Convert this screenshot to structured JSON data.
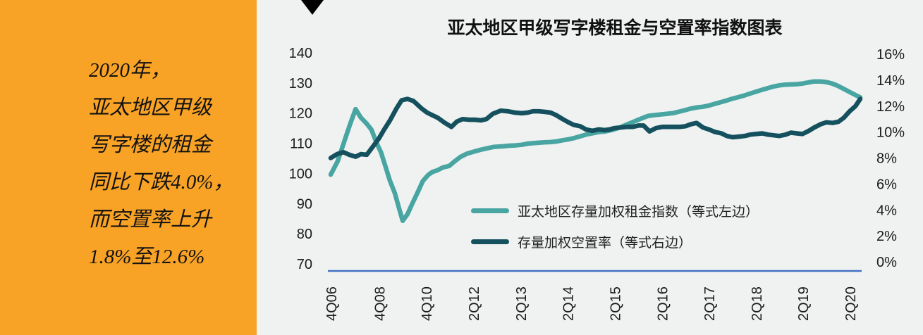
{
  "sidebar": {
    "background_color": "#F9A326",
    "lines": [
      "2020年，",
      "亚太地区甲级",
      "写字楼的租金",
      "同比下跌4.0%，",
      "而空置率上升",
      "1.8%至12.6%"
    ]
  },
  "chart": {
    "title": "亚太地区甲级写字楼租金与空置率指数图表",
    "legend": [
      {
        "label": "亚太地区存量加权租金指数（等式左边）",
        "color": "#48A5A2"
      },
      {
        "label": "存量加权空置率（等式右边）",
        "color": "#15505E"
      }
    ]
  },
  "chart_data": {
    "type": "line",
    "title": "亚太地区甲级写字楼租金与空置率指数图表",
    "grid": false,
    "legend_position": "inside-center",
    "axis_line_color": "#4472C4",
    "x_tick_labels": [
      "4Q06",
      "4Q08",
      "4Q10",
      "2Q12",
      "2Q13",
      "2Q14",
      "2Q15",
      "2Q16",
      "2Q17",
      "2Q18",
      "2Q19",
      "2Q20"
    ],
    "x_tick_pos": [
      0.0,
      0.091,
      0.18,
      0.269,
      0.358,
      0.447,
      0.536,
      0.625,
      0.714,
      0.803,
      0.891,
      0.98
    ],
    "left_axis": {
      "ticks": [
        "140",
        "130",
        "120",
        "110",
        "100",
        "90",
        "80",
        "70"
      ],
      "range": [
        70,
        140
      ]
    },
    "right_axis": {
      "ticks": [
        "16%",
        "14%",
        "12%",
        "10%",
        "8%",
        "6%",
        "4%",
        "2%",
        "0%"
      ],
      "range": [
        0,
        16
      ]
    },
    "series": [
      {
        "name": "亚太地区存量加权租金指数（等式左边）",
        "axis": "left",
        "color": "#48A5A2",
        "points": [
          [
            0.0,
            99.6
          ],
          [
            0.013,
            104.0
          ],
          [
            0.025,
            110.3
          ],
          [
            0.036,
            116.0
          ],
          [
            0.047,
            121.3
          ],
          [
            0.057,
            118.5
          ],
          [
            0.068,
            116.5
          ],
          [
            0.077,
            114.5
          ],
          [
            0.087,
            110.0
          ],
          [
            0.095,
            107.0
          ],
          [
            0.103,
            102.5
          ],
          [
            0.112,
            97.5
          ],
          [
            0.121,
            93.5
          ],
          [
            0.129,
            88.5
          ],
          [
            0.136,
            84.3
          ],
          [
            0.145,
            86.5
          ],
          [
            0.154,
            90.0
          ],
          [
            0.165,
            94.0
          ],
          [
            0.174,
            97.5
          ],
          [
            0.184,
            99.5
          ],
          [
            0.192,
            100.5
          ],
          [
            0.201,
            101.0
          ],
          [
            0.212,
            102.0
          ],
          [
            0.224,
            102.5
          ],
          [
            0.234,
            104.0
          ],
          [
            0.245,
            105.5
          ],
          [
            0.258,
            106.6
          ],
          [
            0.272,
            107.3
          ],
          [
            0.282,
            107.8
          ],
          [
            0.294,
            108.3
          ],
          [
            0.308,
            108.8
          ],
          [
            0.325,
            109.0
          ],
          [
            0.337,
            109.2
          ],
          [
            0.348,
            109.3
          ],
          [
            0.361,
            109.5
          ],
          [
            0.373,
            109.9
          ],
          [
            0.387,
            110.1
          ],
          [
            0.403,
            110.3
          ],
          [
            0.415,
            110.4
          ],
          [
            0.426,
            110.6
          ],
          [
            0.438,
            111.0
          ],
          [
            0.449,
            111.3
          ],
          [
            0.461,
            111.8
          ],
          [
            0.471,
            112.3
          ],
          [
            0.483,
            112.9
          ],
          [
            0.494,
            113.3
          ],
          [
            0.506,
            113.7
          ],
          [
            0.517,
            113.9
          ],
          [
            0.526,
            114.2
          ],
          [
            0.535,
            114.6
          ],
          [
            0.547,
            115.3
          ],
          [
            0.559,
            116.2
          ],
          [
            0.57,
            117.0
          ],
          [
            0.581,
            117.8
          ],
          [
            0.591,
            118.5
          ],
          [
            0.6,
            119.1
          ],
          [
            0.614,
            119.4
          ],
          [
            0.626,
            119.6
          ],
          [
            0.636,
            119.8
          ],
          [
            0.647,
            120.0
          ],
          [
            0.658,
            120.5
          ],
          [
            0.67,
            121.0
          ],
          [
            0.68,
            121.5
          ],
          [
            0.692,
            121.9
          ],
          [
            0.703,
            122.1
          ],
          [
            0.714,
            122.5
          ],
          [
            0.726,
            123.1
          ],
          [
            0.738,
            123.7
          ],
          [
            0.748,
            124.2
          ],
          [
            0.759,
            124.8
          ],
          [
            0.77,
            125.3
          ],
          [
            0.78,
            125.8
          ],
          [
            0.792,
            126.5
          ],
          [
            0.803,
            127.1
          ],
          [
            0.814,
            127.7
          ],
          [
            0.826,
            128.3
          ],
          [
            0.836,
            128.8
          ],
          [
            0.847,
            129.2
          ],
          [
            0.857,
            129.4
          ],
          [
            0.869,
            129.5
          ],
          [
            0.88,
            129.6
          ],
          [
            0.891,
            129.8
          ],
          [
            0.903,
            130.2
          ],
          [
            0.913,
            130.5
          ],
          [
            0.924,
            130.5
          ],
          [
            0.936,
            130.3
          ],
          [
            0.947,
            129.8
          ],
          [
            0.957,
            129.1
          ],
          [
            0.969,
            128.0
          ],
          [
            0.98,
            127.0
          ],
          [
            0.991,
            126.0
          ],
          [
            1.0,
            125.2
          ]
        ]
      },
      {
        "name": "存量加权空置率（等式右边）",
        "axis": "right",
        "color": "#15505E",
        "points": [
          [
            0.0,
            8.0
          ],
          [
            0.012,
            8.3
          ],
          [
            0.024,
            8.45
          ],
          [
            0.035,
            8.25
          ],
          [
            0.047,
            8.1
          ],
          [
            0.057,
            8.3
          ],
          [
            0.068,
            8.25
          ],
          [
            0.08,
            8.9
          ],
          [
            0.091,
            9.5
          ],
          [
            0.101,
            10.2
          ],
          [
            0.112,
            10.9
          ],
          [
            0.124,
            11.8
          ],
          [
            0.134,
            12.45
          ],
          [
            0.145,
            12.55
          ],
          [
            0.156,
            12.4
          ],
          [
            0.172,
            11.8
          ],
          [
            0.182,
            11.5
          ],
          [
            0.192,
            11.3
          ],
          [
            0.202,
            11.1
          ],
          [
            0.214,
            10.75
          ],
          [
            0.228,
            10.4
          ],
          [
            0.238,
            10.8
          ],
          [
            0.249,
            11.0
          ],
          [
            0.262,
            10.95
          ],
          [
            0.272,
            10.95
          ],
          [
            0.284,
            10.9
          ],
          [
            0.294,
            11.0
          ],
          [
            0.306,
            11.4
          ],
          [
            0.321,
            11.65
          ],
          [
            0.334,
            11.6
          ],
          [
            0.348,
            11.5
          ],
          [
            0.361,
            11.45
          ],
          [
            0.372,
            11.5
          ],
          [
            0.382,
            11.6
          ],
          [
            0.393,
            11.6
          ],
          [
            0.405,
            11.55
          ],
          [
            0.415,
            11.5
          ],
          [
            0.426,
            11.3
          ],
          [
            0.438,
            11.0
          ],
          [
            0.449,
            10.75
          ],
          [
            0.459,
            10.55
          ],
          [
            0.471,
            10.45
          ],
          [
            0.482,
            10.2
          ],
          [
            0.494,
            10.1
          ],
          [
            0.506,
            10.2
          ],
          [
            0.517,
            10.15
          ],
          [
            0.527,
            10.2
          ],
          [
            0.535,
            10.3
          ],
          [
            0.547,
            10.35
          ],
          [
            0.559,
            10.4
          ],
          [
            0.57,
            10.4
          ],
          [
            0.581,
            10.5
          ],
          [
            0.591,
            10.5
          ],
          [
            0.602,
            10.05
          ],
          [
            0.614,
            10.3
          ],
          [
            0.626,
            10.4
          ],
          [
            0.636,
            10.4
          ],
          [
            0.648,
            10.4
          ],
          [
            0.659,
            10.4
          ],
          [
            0.67,
            10.45
          ],
          [
            0.68,
            10.6
          ],
          [
            0.691,
            10.7
          ],
          [
            0.703,
            10.35
          ],
          [
            0.714,
            10.2
          ],
          [
            0.726,
            10.0
          ],
          [
            0.738,
            9.9
          ],
          [
            0.748,
            9.7
          ],
          [
            0.759,
            9.6
          ],
          [
            0.771,
            9.65
          ],
          [
            0.782,
            9.7
          ],
          [
            0.792,
            9.8
          ],
          [
            0.803,
            9.85
          ],
          [
            0.815,
            9.9
          ],
          [
            0.826,
            9.8
          ],
          [
            0.836,
            9.75
          ],
          [
            0.847,
            9.7
          ],
          [
            0.859,
            9.8
          ],
          [
            0.869,
            9.95
          ],
          [
            0.88,
            9.9
          ],
          [
            0.891,
            9.85
          ],
          [
            0.903,
            10.1
          ],
          [
            0.913,
            10.35
          ],
          [
            0.925,
            10.6
          ],
          [
            0.936,
            10.75
          ],
          [
            0.948,
            10.7
          ],
          [
            0.959,
            10.8
          ],
          [
            0.969,
            11.1
          ],
          [
            0.98,
            11.6
          ],
          [
            0.991,
            12.0
          ],
          [
            1.0,
            12.55
          ]
        ]
      }
    ]
  }
}
